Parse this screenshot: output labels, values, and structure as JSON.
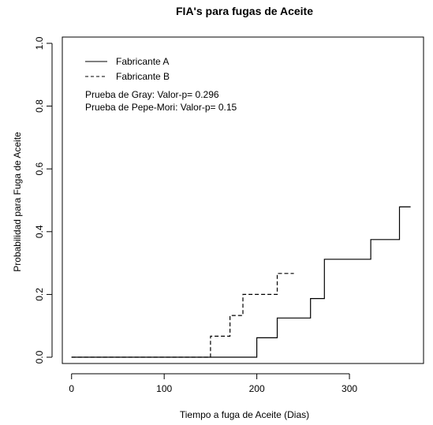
{
  "chart_data": {
    "type": "line",
    "step": true,
    "title": "FIA's para fugas de Aceite",
    "xlabel": "Tiempo a fuga de Aceite (Dias)",
    "ylabel": "Probabilidad para Fuga de Aceite",
    "xlim": [
      -10,
      380
    ],
    "ylim": [
      -0.02,
      1.02
    ],
    "x_ticks": [
      0,
      100,
      200,
      300
    ],
    "y_ticks": [
      0.0,
      0.2,
      0.4,
      0.6,
      0.8,
      1.0
    ],
    "x_tick_labels": [
      "0",
      "100",
      "200",
      "300"
    ],
    "y_tick_labels": [
      "0.0",
      "0.2",
      "0.4",
      "0.6",
      "0.8",
      "1.0"
    ],
    "grid": false,
    "legend_position": "top-left",
    "series": [
      {
        "name": "Fabricante A",
        "line_style": "solid",
        "x": [
          0,
          200,
          222,
          258,
          273,
          323,
          354,
          366
        ],
        "y": [
          0.0,
          0.062,
          0.125,
          0.187,
          0.312,
          0.375,
          0.479,
          0.479
        ]
      },
      {
        "name": "Fabricante B",
        "line_style": "dashed",
        "x": [
          0,
          150,
          171,
          185,
          222,
          240
        ],
        "y": [
          0.0,
          0.067,
          0.133,
          0.2,
          0.267,
          0.267
        ]
      }
    ],
    "annotations": [
      "Prueba de Gray: Valor-p= 0.296",
      "Prueba de Pepe-Mori: Valor-p= 0.15"
    ]
  }
}
